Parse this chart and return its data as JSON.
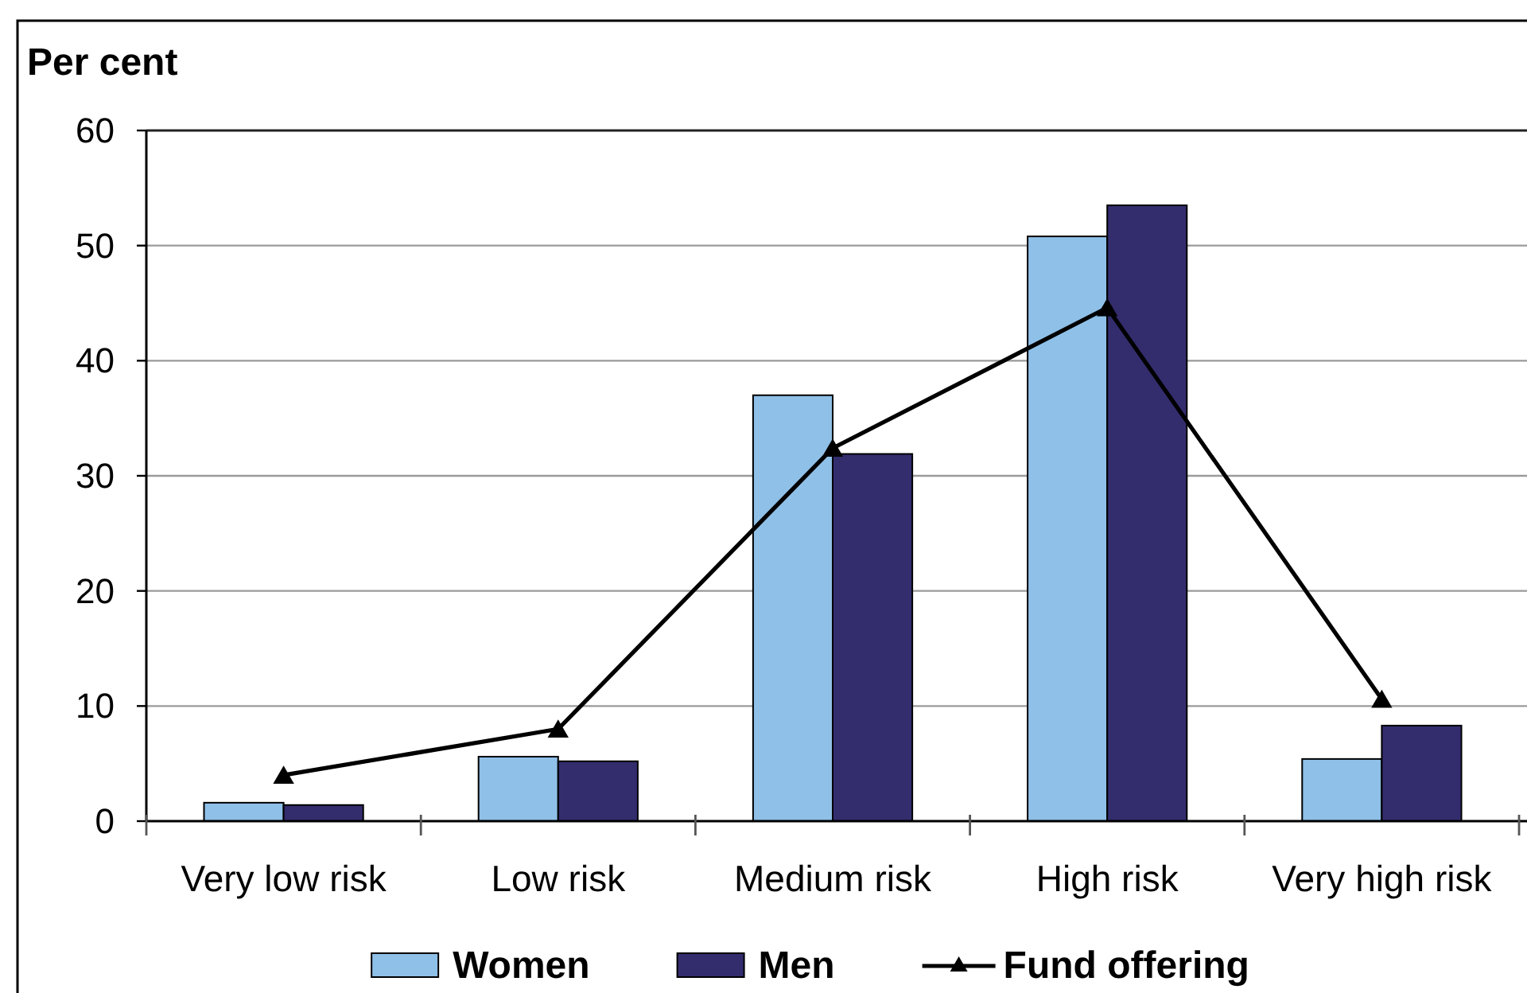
{
  "chart_data": {
    "type": "bar",
    "ylabel": "Per cent",
    "categories": [
      "Very low risk",
      "Low risk",
      "Medium risk",
      "High risk",
      "Very high risk"
    ],
    "series": [
      {
        "name": "Women",
        "color": "#8fc0e8",
        "values": [
          1.6,
          5.6,
          37.0,
          50.8,
          5.4
        ]
      },
      {
        "name": "Men",
        "color": "#332d6e",
        "values": [
          1.4,
          5.2,
          31.9,
          53.5,
          8.3
        ]
      },
      {
        "name": "Fund offering",
        "type": "line",
        "color": "#000000",
        "values": [
          4.0,
          8.0,
          32.4,
          44.6,
          10.6
        ]
      }
    ],
    "ylim": [
      0,
      60
    ],
    "yticks": [
      0,
      10,
      20,
      30,
      40,
      50,
      60
    ],
    "grid": "y",
    "legend": "bottom",
    "marker": "triangle",
    "line_style": "solid"
  }
}
